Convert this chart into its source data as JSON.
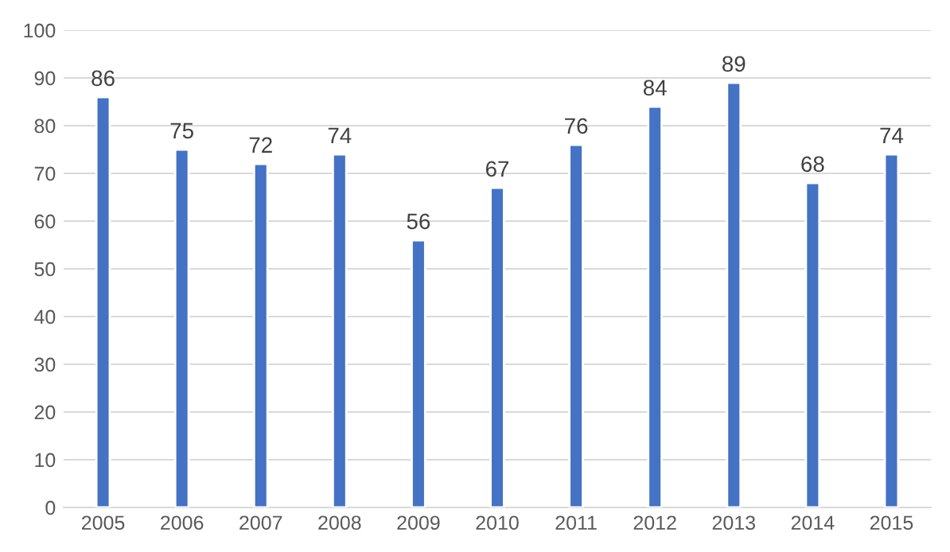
{
  "chart_data": {
    "type": "bar",
    "categories": [
      "2005",
      "2006",
      "2007",
      "2008",
      "2009",
      "2010",
      "2011",
      "2012",
      "2013",
      "2014",
      "2015"
    ],
    "values": [
      86,
      75,
      72,
      74,
      56,
      67,
      76,
      84,
      89,
      68,
      74
    ],
    "color": "#4472c4",
    "ylim": [
      0,
      100
    ],
    "yticks": [
      0,
      10,
      20,
      30,
      40,
      50,
      60,
      70,
      80,
      90,
      100
    ],
    "grid": "y",
    "data_labels": true
  }
}
